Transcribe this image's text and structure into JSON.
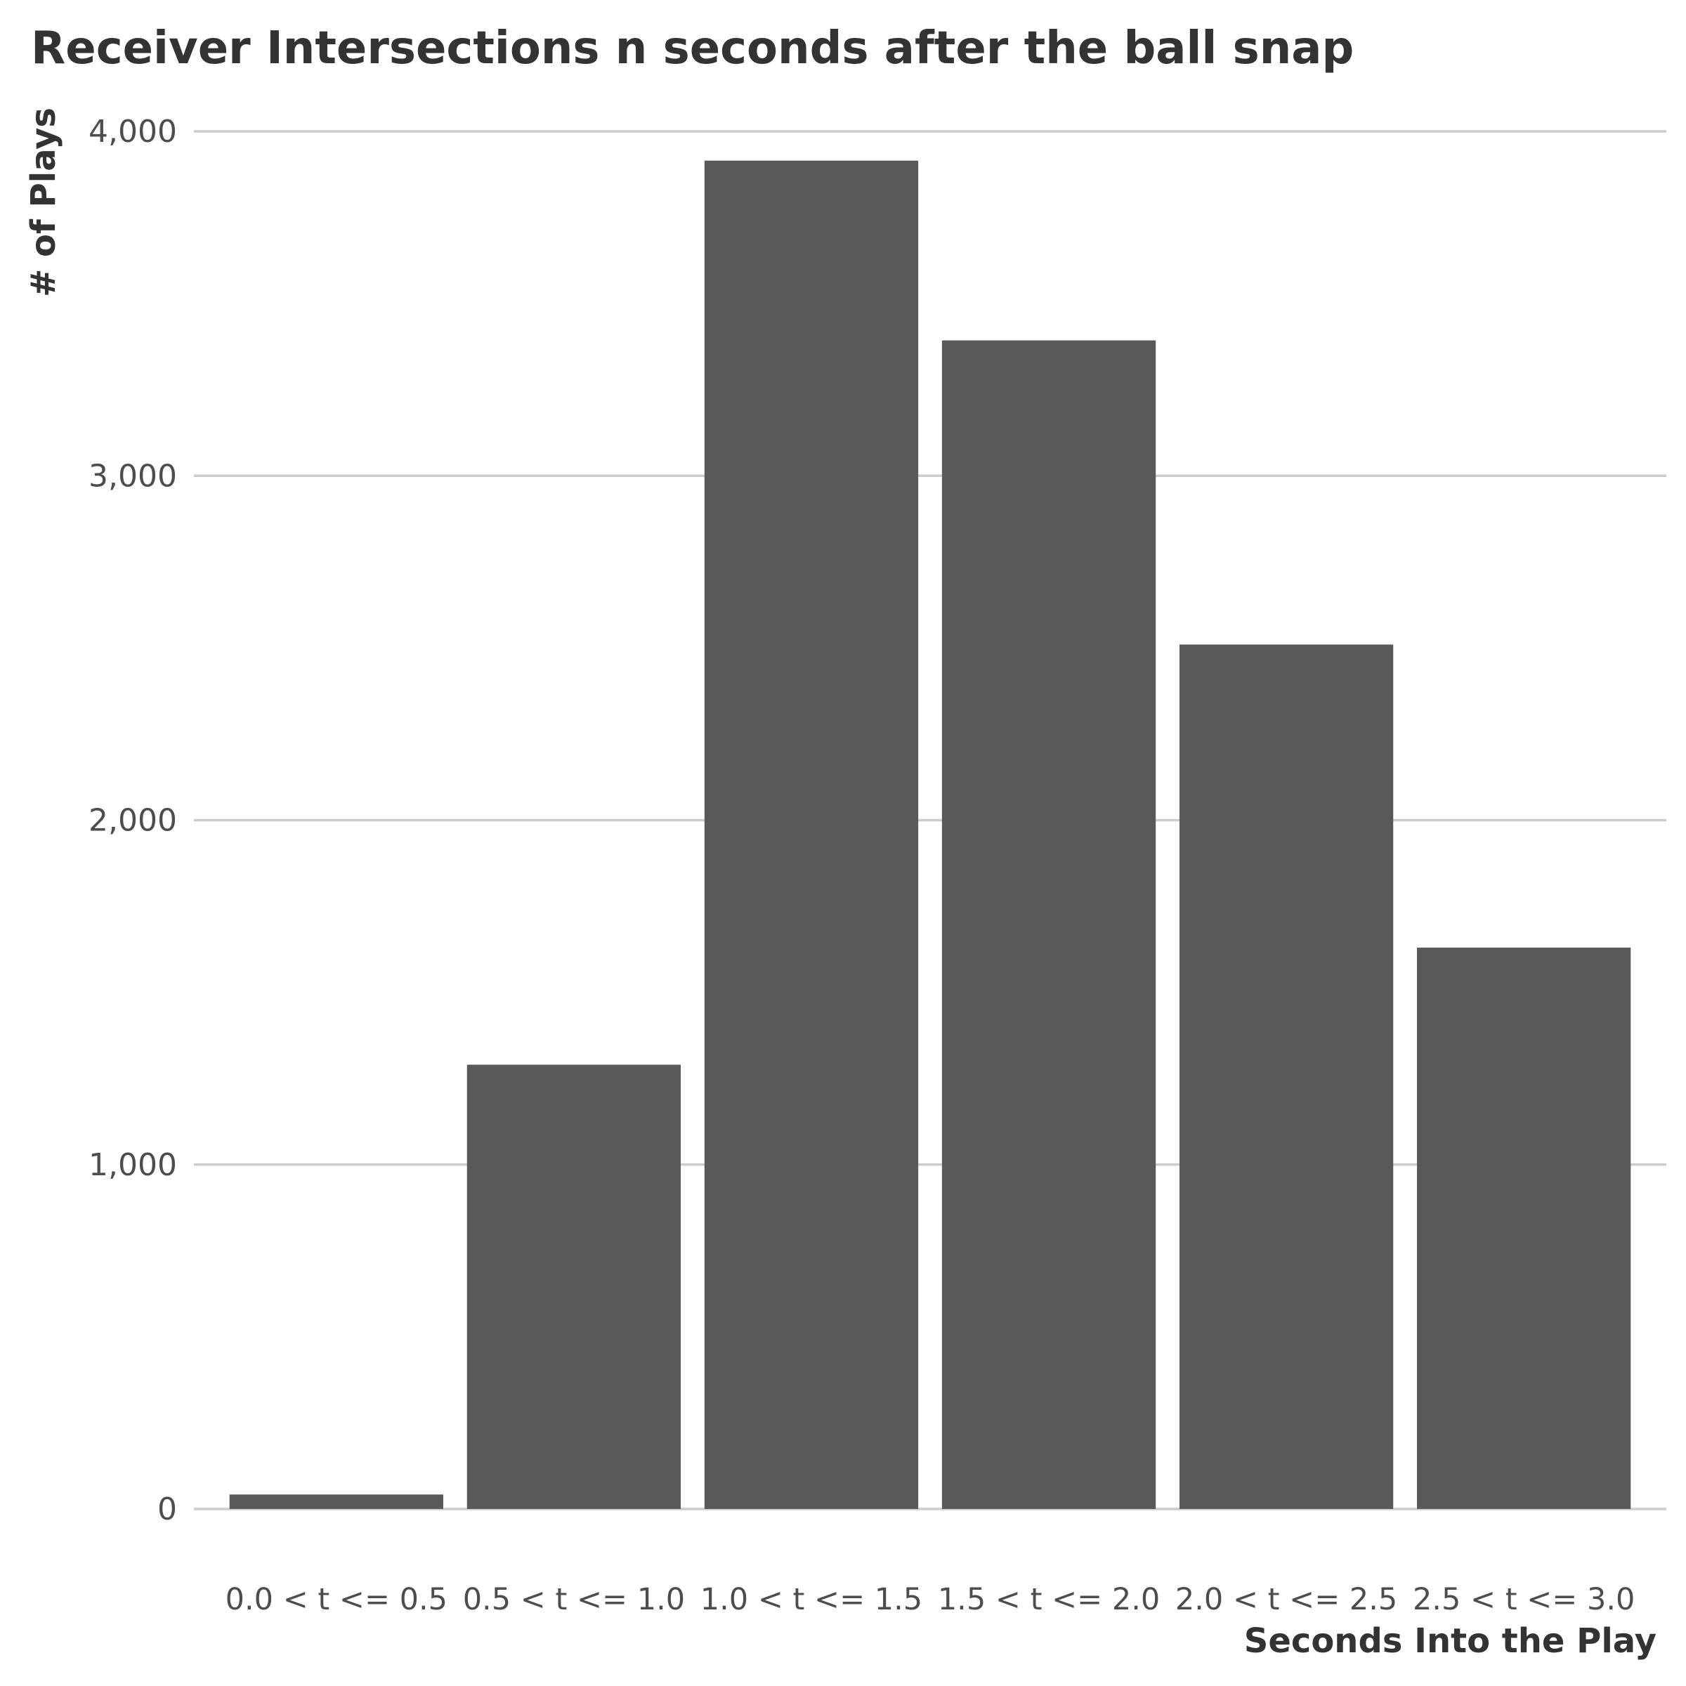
{
  "colors": {
    "bar": "#595959",
    "grid": "#cccccc",
    "title_text": "#333333",
    "tick_text": "#4d4d4d",
    "background": "#ffffff"
  },
  "chart_data": {
    "type": "bar",
    "title": "Receiver Intersections n seconds after the ball snap",
    "xlabel": "Seconds Into the Play",
    "ylabel": "# of Plays",
    "categories": [
      "0.0 < t <= 0.5",
      "0.5 < t <= 1.0",
      "1.0 < t <= 1.5",
      "1.5 < t <= 2.0",
      "2.0 < t <= 2.5",
      "2.5 < t <= 3.0"
    ],
    "values": [
      42,
      1290,
      3915,
      3393,
      2510,
      1630
    ],
    "ylim": [
      0,
      4000
    ],
    "yticks": [
      0,
      1000,
      2000,
      3000,
      4000
    ],
    "ytick_labels": [
      "0",
      "1,000",
      "2,000",
      "3,000",
      "4,000"
    ],
    "grid": "horizontal major gridlines",
    "legend": "none"
  }
}
